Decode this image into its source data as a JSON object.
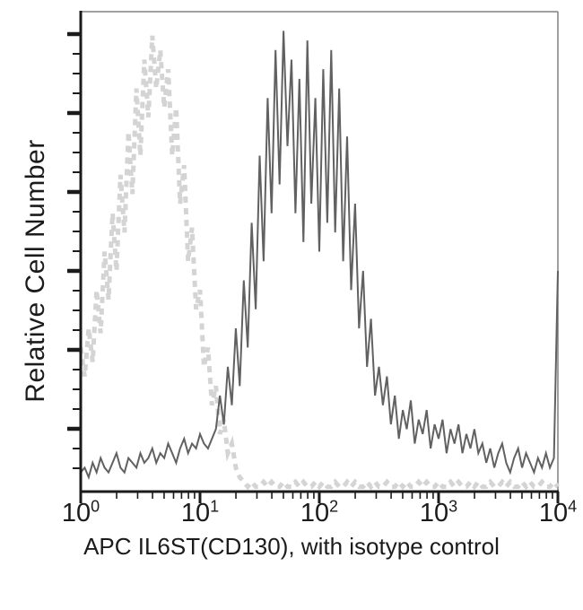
{
  "figure": {
    "title": "",
    "ylabel": "Relative Cell Number",
    "xlabel": "APC IL6ST(CD130), with isotype control"
  },
  "chart_data": {
    "type": "line",
    "subtype": "flow-cytometry-histogram-overlay",
    "title": "",
    "xlabel": "APC IL6ST(CD130), with isotype control",
    "ylabel": "Relative Cell Number",
    "x_scale": "log10",
    "x_range": [
      1,
      10000
    ],
    "x_tick_exponents": [
      0,
      1,
      2,
      3,
      4
    ],
    "y_axis": "unlabeled relative scale (0-100), major ticks with 3 minor ticks between",
    "grid": false,
    "legend": "none",
    "colors": {
      "axis": "#1b1b1b",
      "frame_light": "#808080",
      "background": "#ffffff",
      "isotype": "#d4d4d4",
      "antibody": "#616161"
    },
    "series": [
      {
        "name": "isotype control",
        "style": "dashed",
        "color": "#d4d4d4",
        "logx_start": 0,
        "logx_step": 0.03333333,
        "values": [
          30,
          24,
          34,
          27,
          42,
          33,
          50,
          40,
          58,
          46,
          66,
          54,
          75,
          62,
          84,
          70,
          90,
          78,
          95,
          84,
          92,
          80,
          88,
          70,
          80,
          60,
          68,
          48,
          55,
          38,
          42,
          26,
          30,
          18,
          22,
          12,
          15,
          8,
          10,
          5,
          3,
          2,
          1,
          2,
          1,
          1,
          2,
          1,
          2,
          1,
          1,
          2,
          1,
          1,
          2,
          1,
          2,
          1,
          1,
          2,
          1,
          2,
          1,
          1,
          2,
          1,
          1,
          2,
          1,
          2,
          1,
          1,
          2,
          1,
          2,
          1,
          1,
          2,
          1,
          1,
          2,
          1,
          2,
          1,
          1,
          2,
          1,
          2,
          1,
          1,
          2,
          1,
          1,
          2,
          1,
          2,
          1,
          1,
          2,
          1,
          2,
          1,
          1,
          2,
          1,
          1,
          2,
          1,
          2,
          1,
          1,
          2,
          1,
          2,
          1,
          1,
          2,
          1,
          1,
          2,
          1
        ]
      },
      {
        "name": "APC IL6ST(CD130)",
        "style": "solid",
        "color": "#616161",
        "logx_start": 0,
        "logx_step": 0.03333333,
        "values": [
          4,
          5,
          3,
          6,
          4,
          7,
          5,
          4,
          6,
          8,
          5,
          4,
          7,
          6,
          5,
          8,
          6,
          7,
          9,
          6,
          8,
          7,
          10,
          8,
          6,
          9,
          11,
          8,
          10,
          9,
          12,
          10,
          9,
          11,
          13,
          20,
          14,
          26,
          18,
          34,
          22,
          44,
          30,
          56,
          38,
          70,
          48,
          82,
          58,
          92,
          64,
          96,
          72,
          90,
          58,
          86,
          52,
          94,
          60,
          82,
          50,
          88,
          56,
          92,
          54,
          84,
          48,
          74,
          42,
          60,
          34,
          46,
          26,
          36,
          20,
          26,
          18,
          24,
          14,
          20,
          11,
          17,
          13,
          19,
          10,
          15,
          12,
          17,
          9,
          14,
          11,
          15,
          8,
          13,
          10,
          14,
          8,
          12,
          9,
          13,
          8,
          10,
          6,
          9,
          5,
          8,
          10,
          6,
          4,
          7,
          9,
          5,
          8,
          6,
          4,
          7,
          5,
          8,
          5,
          7,
          46
        ]
      }
    ]
  }
}
